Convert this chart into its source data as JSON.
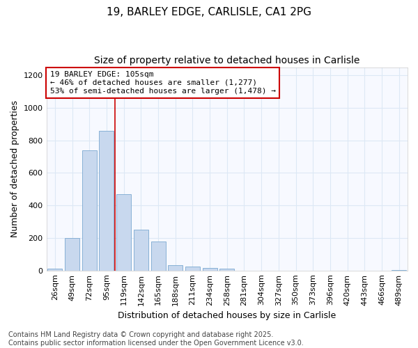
{
  "title_line1": "19, BARLEY EDGE, CARLISLE, CA1 2PG",
  "title_line2": "Size of property relative to detached houses in Carlisle",
  "xlabel": "Distribution of detached houses by size in Carlisle",
  "ylabel": "Number of detached properties",
  "bar_color": "#c8d8ee",
  "bar_edge_color": "#7aa8d0",
  "background_color": "#ffffff",
  "plot_bg_color": "#f7f9ff",
  "grid_color": "#dde8f5",
  "categories": [
    "26sqm",
    "49sqm",
    "72sqm",
    "95sqm",
    "119sqm",
    "142sqm",
    "165sqm",
    "188sqm",
    "211sqm",
    "234sqm",
    "258sqm",
    "281sqm",
    "304sqm",
    "327sqm",
    "350sqm",
    "373sqm",
    "396sqm",
    "420sqm",
    "443sqm",
    "466sqm",
    "489sqm"
  ],
  "values": [
    10,
    200,
    740,
    860,
    470,
    250,
    180,
    35,
    25,
    15,
    10,
    0,
    0,
    0,
    0,
    0,
    0,
    0,
    0,
    0,
    5
  ],
  "ylim": [
    0,
    1250
  ],
  "yticks": [
    0,
    200,
    400,
    600,
    800,
    1000,
    1200
  ],
  "annotation_text": "19 BARLEY EDGE: 105sqm\n← 46% of detached houses are smaller (1,277)\n53% of semi-detached houses are larger (1,478) →",
  "vline_bin_index": 4,
  "annotation_box_facecolor": "#ffffff",
  "annotation_box_edgecolor": "#cc0000",
  "vline_color": "#cc0000",
  "footer_text": "Contains HM Land Registry data © Crown copyright and database right 2025.\nContains public sector information licensed under the Open Government Licence v3.0.",
  "title_fontsize": 11,
  "subtitle_fontsize": 10,
  "tick_fontsize": 8,
  "ylabel_fontsize": 9,
  "xlabel_fontsize": 9,
  "annotation_fontsize": 8,
  "footer_fontsize": 7
}
